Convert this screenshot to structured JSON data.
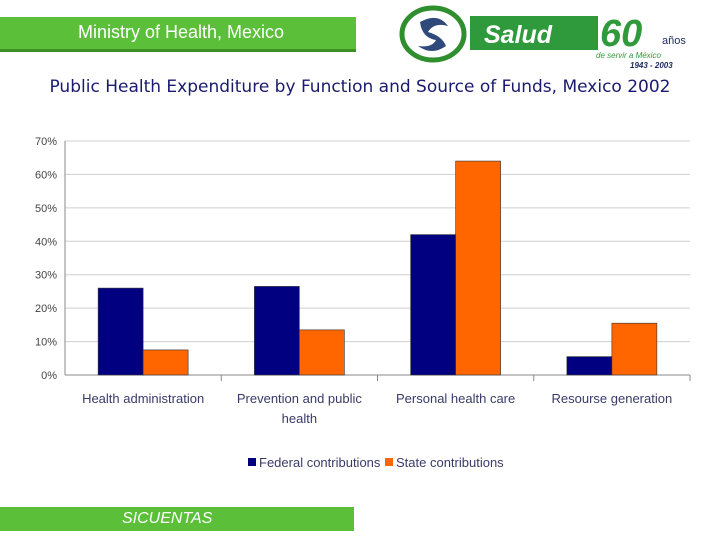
{
  "header": {
    "title": "Ministry of Health, Mexico"
  },
  "logo": {
    "brand": "Salud",
    "anniversary_number": "60",
    "anos": "años",
    "tagline": "de servir a México",
    "years": "1943 - 2003"
  },
  "footer": {
    "label": "SICUENTAS"
  },
  "colors": {
    "federal": "#000080",
    "state": "#ff6600",
    "green": "#5bbf3a"
  },
  "chart_data": {
    "type": "bar",
    "title": "Public Health Expenditure by Function and Source of Funds, Mexico 2002",
    "xlabel": "",
    "ylabel": "",
    "ylim": [
      0,
      70
    ],
    "yticks": [
      "0%",
      "10%",
      "20%",
      "30%",
      "40%",
      "50%",
      "60%",
      "70%"
    ],
    "categories": [
      [
        "Health  administration"
      ],
      [
        "Prevention and public",
        "health"
      ],
      [
        "Personal health care"
      ],
      [
        "Resourse generation"
      ]
    ],
    "series": [
      {
        "name": "Federal contributions",
        "values": [
          26,
          26.5,
          42,
          5.5
        ]
      },
      {
        "name": "State contributions",
        "values": [
          7.5,
          13.5,
          64,
          15.5
        ]
      }
    ],
    "legend_position": "bottom",
    "grid": true
  }
}
